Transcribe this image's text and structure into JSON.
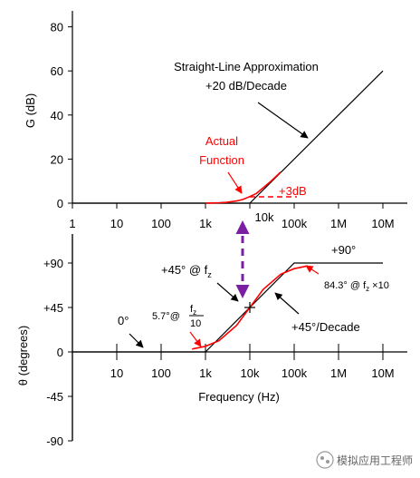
{
  "chart_data": [
    {
      "type": "line",
      "ylabel": "G (dB)",
      "xscale": "log",
      "xlim": [
        1,
        10000000
      ],
      "ylim": [
        0,
        85
      ],
      "x_ticks": [
        {
          "value": 1,
          "label": "1"
        },
        {
          "value": 10,
          "label": "10"
        },
        {
          "value": 100,
          "label": "100"
        },
        {
          "value": 1000,
          "label": "1k"
        },
        {
          "value": 100000,
          "label": "100k"
        },
        {
          "value": 1000000,
          "label": "1M"
        },
        {
          "value": 10000000,
          "label": "10M"
        }
      ],
      "x_tick_special": {
        "value": 10000,
        "label": "10k"
      },
      "y_ticks": [
        0,
        20,
        40,
        60,
        80
      ],
      "series": [
        {
          "name": "Straight-Line Approximation",
          "color": "#000000",
          "points": [
            [
              1,
              0
            ],
            [
              10000,
              0
            ],
            [
              10000000,
              60
            ]
          ]
        },
        {
          "name": "Actual Function",
          "color": "#ff0000",
          "points": [
            [
              1000,
              0.04
            ],
            [
              2000,
              0.17
            ],
            [
              3000,
              0.37
            ],
            [
              5000,
              0.97
            ],
            [
              7000,
              1.7
            ],
            [
              10000,
              3.0
            ],
            [
              14000,
              4.4
            ],
            [
              20000,
              6.99
            ],
            [
              30000,
              10.0
            ],
            [
              50000,
              14.15
            ]
          ]
        }
      ],
      "annotations": {
        "approx_line1": "Straight-Line Approximation",
        "approx_line2": "+20 dB/Decade",
        "actual_line1": "Actual",
        "actual_line2": "Function",
        "plus3db": "+3dB"
      }
    },
    {
      "type": "line",
      "ylabel": "θ (degrees)",
      "xlabel": "Frequency (Hz)",
      "xscale": "log",
      "xlim": [
        1,
        10000000
      ],
      "ylim": [
        -90,
        90
      ],
      "x_ticks": [
        {
          "value": 10,
          "label": "10"
        },
        {
          "value": 100,
          "label": "100"
        },
        {
          "value": 1000,
          "label": "1k"
        },
        {
          "value": 10000,
          "label": "10k"
        },
        {
          "value": 100000,
          "label": "100k"
        },
        {
          "value": 1000000,
          "label": "1M"
        },
        {
          "value": 10000000,
          "label": "10M"
        }
      ],
      "y_ticks": [
        {
          "value": 90,
          "label": "+90"
        },
        {
          "value": 45,
          "label": "+45"
        },
        {
          "value": 0,
          "label": "0"
        },
        {
          "value": -45,
          "label": "-45"
        },
        {
          "value": -90,
          "label": "-90"
        }
      ],
      "series": [
        {
          "name": "Straight-Line Approximation",
          "color": "#000000",
          "points": [
            [
              1,
              0
            ],
            [
              1000,
              0
            ],
            [
              100000,
              90
            ],
            [
              10000000,
              90
            ]
          ]
        },
        {
          "name": "Actual Function",
          "color": "#ff0000",
          "points": [
            [
              500,
              2.9
            ],
            [
              1000,
              5.7
            ],
            [
              2000,
              11.3
            ],
            [
              5000,
              26.6
            ],
            [
              10000,
              45
            ],
            [
              20000,
              63.4
            ],
            [
              50000,
              78.7
            ],
            [
              100000,
              84.3
            ],
            [
              200000,
              87.1
            ]
          ]
        }
      ],
      "annotations": {
        "zero_deg": "0°",
        "plus45_at_fz": "+45° @ f",
        "plus45_sub": "z",
        "plus90": "+90°",
        "slope": "+45°/Decade",
        "low_label": "5.7°@",
        "low_frac_num": "f",
        "low_frac_num_sub": "z",
        "low_frac_den": "10",
        "high_label": "84.3° @ f",
        "high_label_sub": "z",
        "high_label_mult": "×10"
      }
    }
  ],
  "watermark": {
    "text": "模拟应用工程师"
  }
}
